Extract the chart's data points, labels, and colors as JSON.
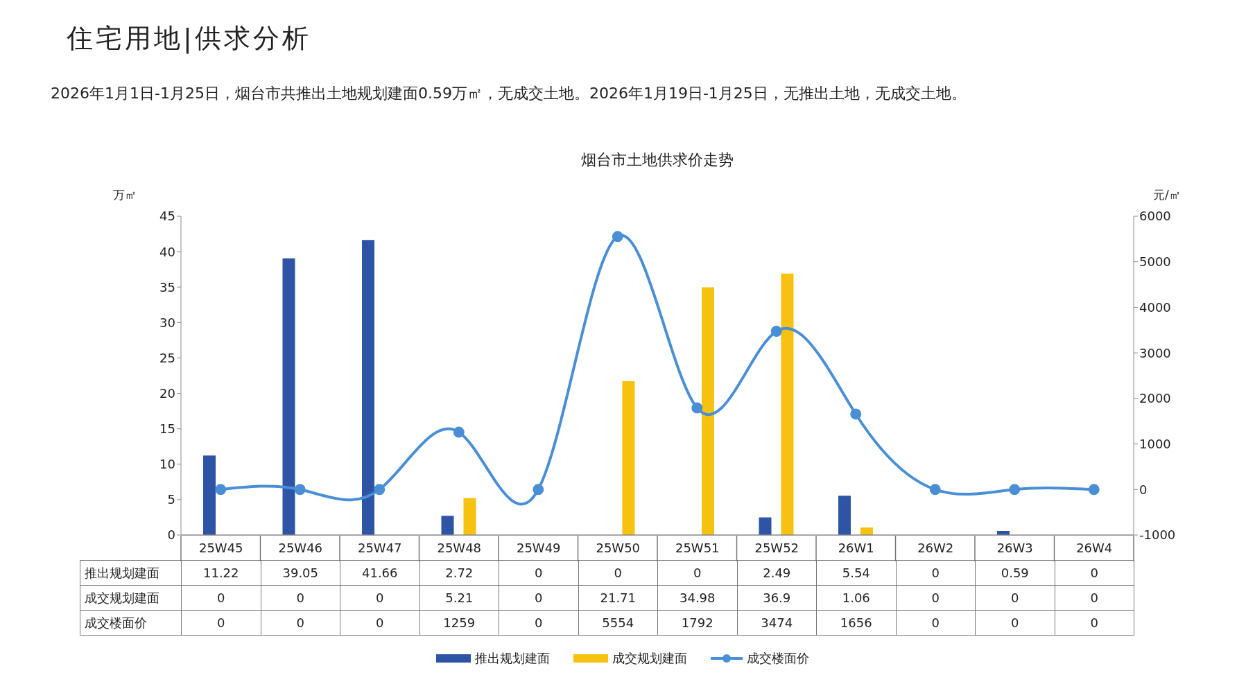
{
  "chart_data": {
    "type": "bar",
    "title": "住宅用地|供求分析",
    "subtitle": "2026年1月1日-1月25日，烟台市共推出土地规划建面0.59万㎡，无成交土地。2026年1月19日-1月25日，无推出土地，无成交土地。",
    "annotations": [
      "烟台市土地供求价走势"
    ],
    "ylabel": "万㎡",
    "y2label": "元/㎡",
    "categories": [
      "25W45",
      "25W46",
      "25W47",
      "25W48",
      "25W49",
      "25W50",
      "25W51",
      "25W52",
      "26W1",
      "26W2",
      "26W3",
      "26W4"
    ],
    "series": [
      {
        "name": "推出规划建面",
        "color": "#2e55a5",
        "values": [
          11.22,
          39.05,
          41.66,
          2.72,
          0,
          0,
          0,
          2.49,
          5.54,
          0,
          0.59,
          0
        ]
      },
      {
        "name": "成交规划建面",
        "color": "#f7c10f",
        "values": [
          0,
          0,
          0,
          5.21,
          0,
          21.71,
          34.98,
          36.9,
          1.06,
          0,
          0,
          0
        ]
      },
      {
        "name": "成交楼面价",
        "type": "line",
        "axis": "y2",
        "color": "#4a8ed6",
        "values": [
          0,
          0,
          0,
          1259,
          0,
          5554,
          1792,
          3474,
          1656,
          0,
          0,
          0
        ]
      }
    ],
    "ylim": [
      0,
      45
    ],
    "yticks": [
      0,
      5,
      10,
      15,
      20,
      25,
      30,
      35,
      40,
      45
    ],
    "y2lim": [
      -1000,
      6000
    ],
    "y2ticks": [
      -1000,
      0,
      1000,
      2000,
      3000,
      4000,
      5000,
      6000
    ],
    "data_labels": true,
    "legend": "bottom",
    "marker": "circle",
    "line_style": "solid"
  }
}
